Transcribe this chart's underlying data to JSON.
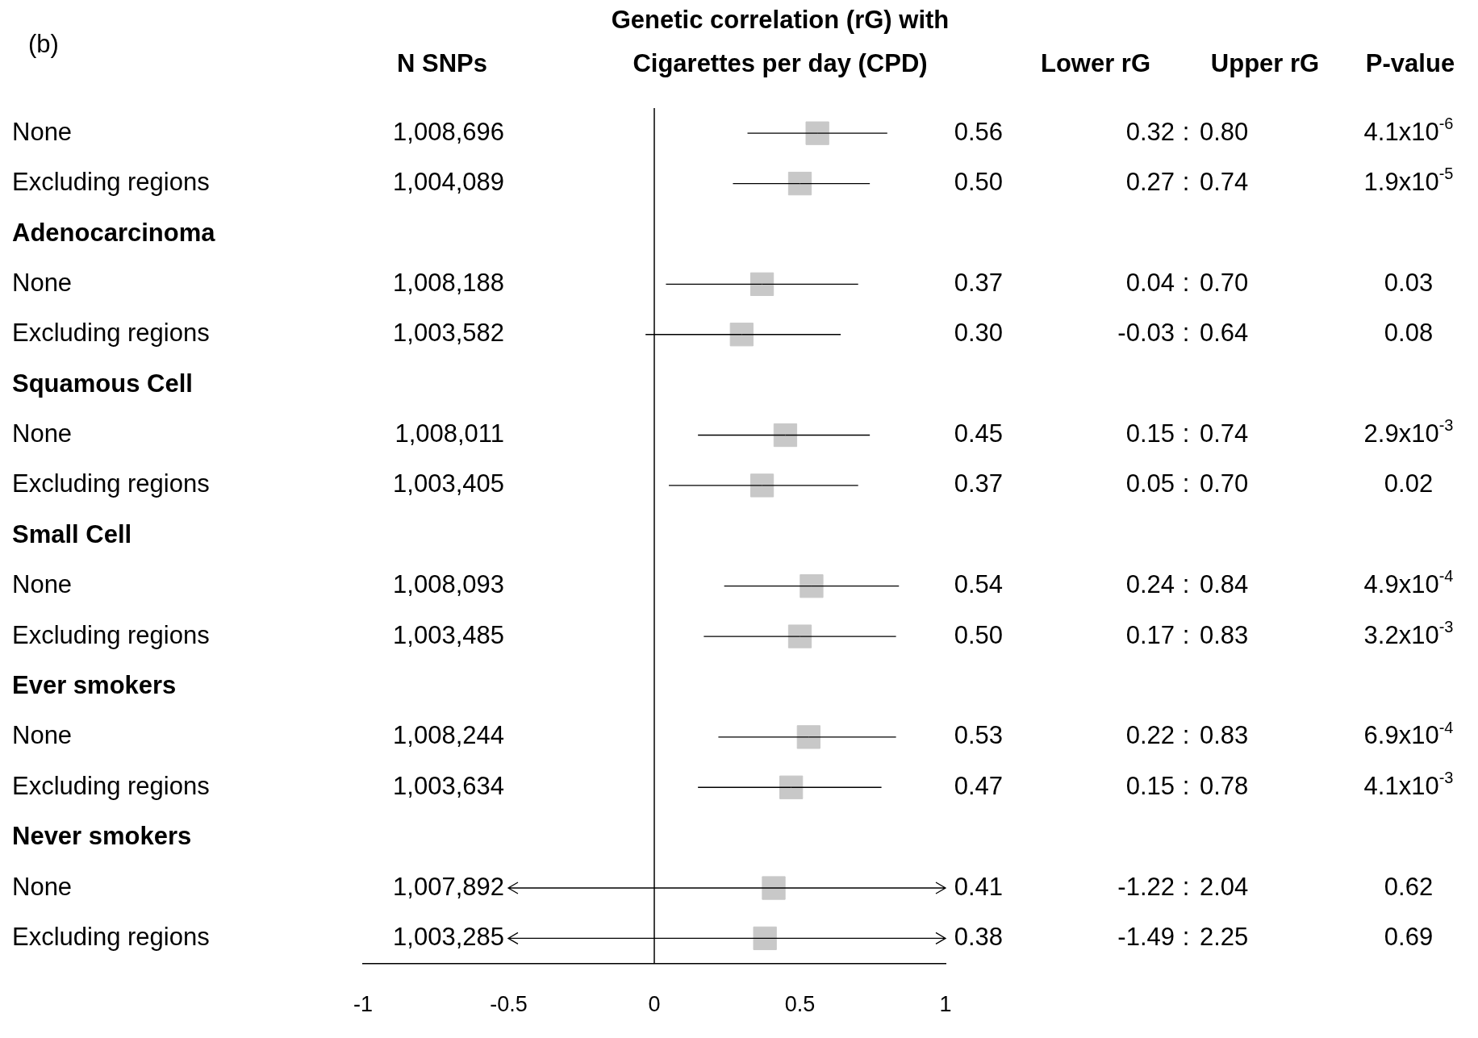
{
  "chart_data": {
    "type": "scatter",
    "orientation": "horizontal",
    "title": "Genetic correlation (rG) with\nCigarettes per day (CPD)",
    "categories": [
      "None",
      "Excluding regions",
      "Adenocarcinoma",
      "None",
      "Excluding regions",
      "Squamous Cell",
      "None",
      "Excluding regions",
      "Small Cell",
      "None",
      "Excluding regions",
      "Ever smokers",
      "None",
      "Excluding regions",
      "Never smokers",
      "None",
      "Excluding regions"
    ],
    "values": [
      0.56,
      0.5,
      null,
      0.37,
      0.3,
      null,
      0.45,
      0.37,
      null,
      0.54,
      0.5,
      null,
      0.53,
      0.47,
      null,
      0.41,
      0.38
    ],
    "errors": [
      [
        0.32,
        0.8
      ],
      [
        0.27,
        0.74
      ],
      null,
      [
        0.04,
        0.7
      ],
      [
        -0.03,
        0.64
      ],
      null,
      [
        0.15,
        0.74
      ],
      [
        0.05,
        0.7
      ],
      null,
      [
        0.24,
        0.84
      ],
      [
        0.17,
        0.83
      ],
      null,
      [
        0.22,
        0.83
      ],
      [
        0.15,
        0.78
      ],
      null,
      null,
      null
    ],
    "color": "#c8c8c8",
    "marker": "square",
    "value_labels": [
      "0.56",
      "0.50",
      null,
      "0.37",
      "0.30",
      null,
      "0.45",
      "0.37",
      null,
      "0.54",
      "0.50",
      null,
      "0.53",
      "0.47",
      null,
      "0.41",
      "0.38"
    ],
    "xlim": [
      -1,
      1
    ],
    "xticks": [
      -1,
      -0.5,
      0,
      0.5,
      1
    ],
    "ref_lines": [
      {
        "axis": "x",
        "value": 0,
        "color": "#000000"
      }
    ],
    "annotations": [
      "(b)",
      "N SNPs",
      "Lower rG",
      "Upper rG",
      "P-value",
      "1,008,696",
      "0.32",
      ":",
      "0.80",
      "4.1x10$^{-6}$",
      "1,004,089",
      "0.27",
      ":",
      "0.74",
      "1.9x10$^{-5}$",
      "1,008,188",
      "0.04",
      ":",
      "0.70",
      "0.03",
      "1,003,582",
      "-0.03",
      ":",
      "0.64",
      "0.08",
      "1,008,011",
      "0.15",
      ":",
      "0.74",
      "2.9x10$^{-3}$",
      "1,003,405",
      "0.05",
      ":",
      "0.70",
      "0.02",
      "1,008,093",
      "0.24",
      ":",
      "0.84",
      "4.9x10$^{-4}$",
      "1,003,485",
      "0.17",
      ":",
      "0.83",
      "3.2x10$^{-3}$",
      "1,008,244",
      "0.22",
      ":",
      "0.83",
      "6.9x10$^{-4}$",
      "1,003,634",
      "0.15",
      ":",
      "0.78",
      "4.1x10$^{-3}$",
      "1,007,892",
      "-1.22",
      ":",
      "2.04",
      "0.62",
      "1,003,285",
      "-1.49",
      ":",
      "2.25",
      "0.69"
    ]
  }
}
